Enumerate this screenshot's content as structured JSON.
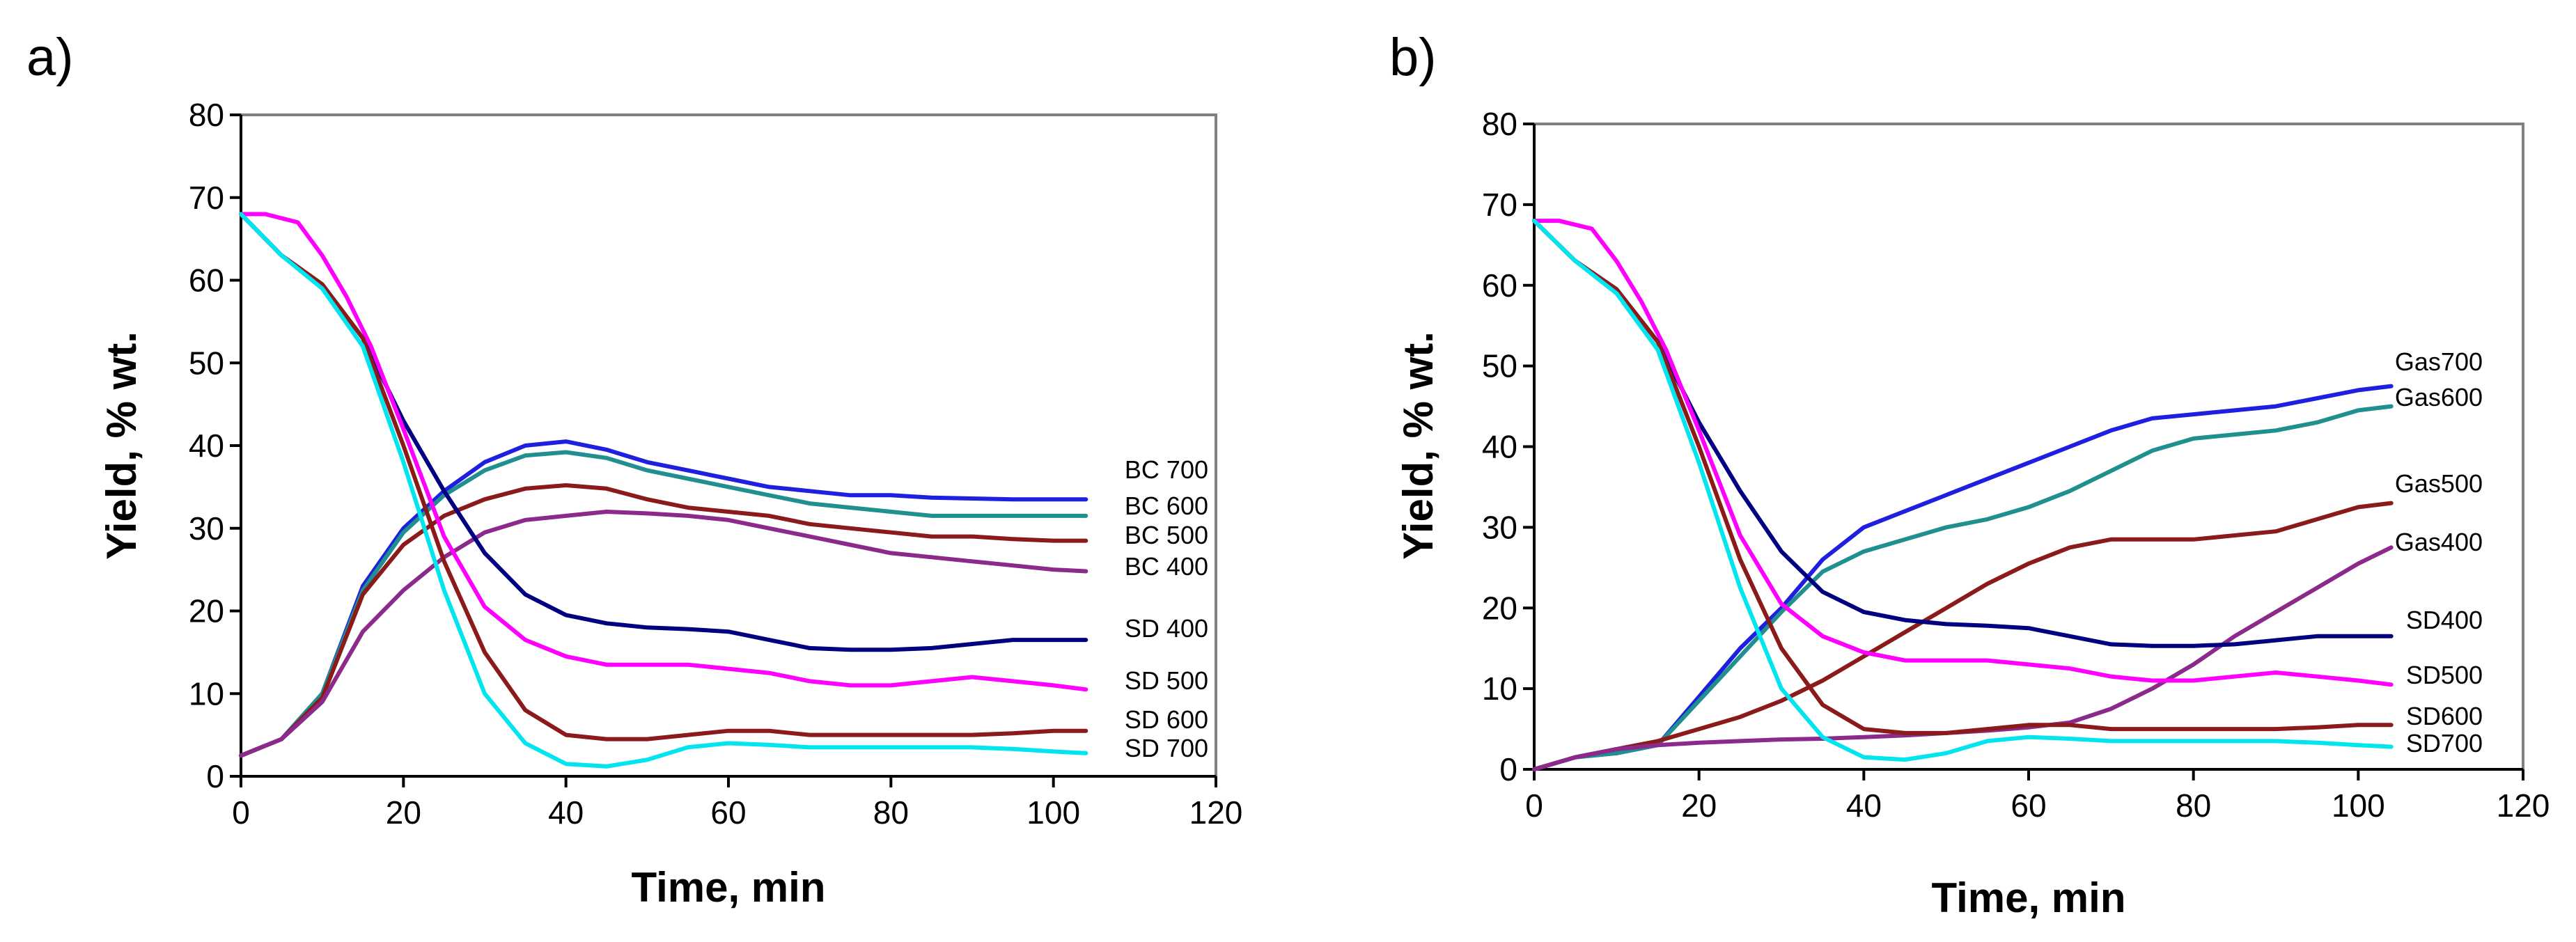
{
  "chart_data": [
    {
      "type": "line",
      "panel_label": "a)",
      "xlabel": "Time, min",
      "ylabel": "Yield, % wt.",
      "xlim": [
        0,
        120
      ],
      "ylim": [
        0,
        80
      ],
      "x_ticks": [
        "0",
        "20",
        "40",
        "60",
        "80",
        "100",
        "120"
      ],
      "y_ticks": [
        "0",
        "10",
        "20",
        "30",
        "40",
        "50",
        "60",
        "70",
        "80"
      ],
      "grid": false,
      "legend": "labels at line ends (right)",
      "series": [
        {
          "name": "BC 700",
          "color": "#1f1fe0",
          "x": [
            0,
            5,
            10,
            15,
            20,
            25,
            30,
            35,
            40,
            45,
            50,
            55,
            60,
            65,
            70,
            75,
            80,
            85,
            90,
            95,
            100,
            104
          ],
          "y": [
            2.5,
            4.5,
            10,
            23,
            30,
            34.5,
            38,
            40,
            40.5,
            39.5,
            38,
            37,
            36,
            35,
            34.5,
            34,
            34,
            33.7,
            33.6,
            33.5,
            33.5,
            33.5
          ]
        },
        {
          "name": "BC 600",
          "color": "#1f8f8f",
          "x": [
            0,
            5,
            10,
            15,
            20,
            25,
            30,
            35,
            40,
            45,
            50,
            55,
            60,
            65,
            70,
            75,
            80,
            85,
            90,
            95,
            100,
            104
          ],
          "y": [
            2.5,
            4.5,
            10,
            22.5,
            29.5,
            34,
            37,
            38.8,
            39.2,
            38.5,
            37,
            36,
            35,
            34,
            33,
            32.5,
            32,
            31.5,
            31.5,
            31.5,
            31.5,
            31.5
          ]
        },
        {
          "name": "BC 500",
          "color": "#8b1a1a",
          "x": [
            0,
            5,
            10,
            15,
            20,
            25,
            30,
            35,
            40,
            45,
            50,
            55,
            60,
            65,
            70,
            75,
            80,
            85,
            90,
            95,
            100,
            104
          ],
          "y": [
            2.5,
            4.5,
            9.5,
            22,
            28,
            31.5,
            33.5,
            34.8,
            35.2,
            34.8,
            33.5,
            32.5,
            32,
            31.5,
            30.5,
            30,
            29.5,
            29,
            29,
            28.7,
            28.5,
            28.5
          ]
        },
        {
          "name": "BC 400",
          "color": "#8b2a8b",
          "x": [
            0,
            5,
            10,
            15,
            20,
            25,
            30,
            35,
            40,
            45,
            50,
            55,
            60,
            65,
            70,
            75,
            80,
            85,
            90,
            95,
            100,
            104
          ],
          "y": [
            2.5,
            4.5,
            9,
            17.5,
            22.5,
            26.5,
            29.5,
            31,
            31.5,
            32,
            31.8,
            31.5,
            31,
            30,
            29,
            28,
            27,
            26.5,
            26,
            25.5,
            25,
            24.8
          ]
        },
        {
          "name": "SD 400",
          "color": "#000080",
          "x": [
            0,
            5,
            10,
            15,
            20,
            25,
            30,
            35,
            40,
            45,
            50,
            55,
            60,
            65,
            70,
            75,
            80,
            85,
            90,
            95,
            100,
            104
          ],
          "y": [
            68,
            63,
            59.5,
            53,
            43,
            34.5,
            27,
            22,
            19.5,
            18.5,
            18,
            17.8,
            17.5,
            16.5,
            15.5,
            15.3,
            15.3,
            15.5,
            16,
            16.5,
            16.5,
            16.5
          ]
        },
        {
          "name": "SD 500",
          "color": "#ff00ff",
          "x": [
            0,
            3,
            7,
            10,
            13,
            16,
            20,
            25,
            30,
            35,
            40,
            45,
            50,
            55,
            60,
            65,
            70,
            75,
            80,
            85,
            90,
            95,
            100,
            104
          ],
          "y": [
            68,
            68,
            67,
            63,
            58,
            52,
            42,
            29,
            20.5,
            16.5,
            14.5,
            13.5,
            13.5,
            13.5,
            13,
            12.5,
            11.5,
            11,
            11,
            11.5,
            12,
            11.5,
            11,
            10.5
          ]
        },
        {
          "name": "SD 600",
          "color": "#8b1a1a",
          "x": [
            0,
            5,
            10,
            15,
            20,
            25,
            30,
            35,
            40,
            45,
            50,
            55,
            60,
            65,
            70,
            75,
            80,
            85,
            90,
            95,
            100,
            104
          ],
          "y": [
            68,
            63,
            59.5,
            53,
            40,
            26,
            15,
            8,
            5,
            4.5,
            4.5,
            5,
            5.5,
            5.5,
            5,
            5,
            5,
            5,
            5,
            5.2,
            5.5,
            5.5
          ]
        },
        {
          "name": "SD 700",
          "color": "#00e5ee",
          "x": [
            0,
            5,
            10,
            15,
            20,
            25,
            30,
            35,
            40,
            45,
            50,
            55,
            60,
            65,
            70,
            75,
            80,
            85,
            90,
            95,
            100,
            104
          ],
          "y": [
            68,
            63,
            59,
            52,
            38,
            22.5,
            10,
            4,
            1.5,
            1.2,
            2,
            3.5,
            4,
            3.8,
            3.5,
            3.5,
            3.5,
            3.5,
            3.5,
            3.3,
            3,
            2.8
          ]
        }
      ]
    },
    {
      "type": "line",
      "panel_label": "b)",
      "xlabel": "Time, min",
      "ylabel": "Yield, % wt.",
      "xlim": [
        0,
        120
      ],
      "ylim": [
        0,
        80
      ],
      "x_ticks": [
        "0",
        "20",
        "40",
        "60",
        "80",
        "100",
        "120"
      ],
      "y_ticks": [
        "0",
        "10",
        "20",
        "30",
        "40",
        "50",
        "60",
        "70",
        "80"
      ],
      "grid": false,
      "legend": "labels at line ends (right)",
      "series": [
        {
          "name": "Gas700",
          "color": "#1f1fe0",
          "x": [
            0,
            5,
            10,
            15,
            20,
            25,
            30,
            35,
            40,
            45,
            50,
            55,
            60,
            65,
            70,
            75,
            80,
            85,
            90,
            95,
            100,
            104
          ],
          "y": [
            0,
            1.5,
            2,
            3,
            9,
            15,
            20,
            26,
            30,
            32,
            34,
            36,
            38,
            40,
            42,
            43.5,
            44,
            44.5,
            45,
            46,
            47,
            47.5
          ]
        },
        {
          "name": "Gas600",
          "color": "#1f8f8f",
          "x": [
            0,
            5,
            10,
            15,
            20,
            25,
            30,
            35,
            40,
            45,
            50,
            55,
            60,
            65,
            70,
            75,
            80,
            85,
            90,
            95,
            100,
            104
          ],
          "y": [
            0,
            1.5,
            2,
            3,
            8.5,
            14,
            19.5,
            24.5,
            27,
            28.5,
            30,
            31,
            32.5,
            34.5,
            37,
            39.5,
            41,
            41.5,
            42,
            43,
            44.5,
            45
          ]
        },
        {
          "name": "Gas500",
          "color": "#8b1a1a",
          "x": [
            0,
            5,
            10,
            15,
            20,
            25,
            30,
            35,
            40,
            45,
            50,
            55,
            60,
            65,
            70,
            75,
            80,
            85,
            90,
            95,
            100,
            104
          ],
          "y": [
            0,
            1.5,
            2.5,
            3.5,
            5,
            6.5,
            8.5,
            11,
            14,
            17,
            20,
            23,
            25.5,
            27.5,
            28.5,
            28.5,
            28.5,
            29,
            29.5,
            31,
            32.5,
            33
          ]
        },
        {
          "name": "Gas400",
          "color": "#8b2a8b",
          "x": [
            0,
            5,
            10,
            15,
            20,
            25,
            30,
            35,
            40,
            45,
            50,
            55,
            60,
            65,
            70,
            75,
            80,
            85,
            90,
            95,
            100,
            104
          ],
          "y": [
            0,
            1.5,
            2.5,
            3,
            3.3,
            3.5,
            3.7,
            3.8,
            4,
            4.2,
            4.5,
            4.8,
            5.2,
            5.8,
            7.5,
            10,
            13,
            16.5,
            19.5,
            22.5,
            25.5,
            27.5
          ]
        },
        {
          "name": "SD400",
          "color": "#000080",
          "x": [
            0,
            5,
            10,
            15,
            20,
            25,
            30,
            35,
            40,
            45,
            50,
            55,
            60,
            65,
            70,
            75,
            80,
            85,
            90,
            95,
            100,
            104
          ],
          "y": [
            68,
            63,
            59.5,
            53,
            43,
            34.5,
            27,
            22,
            19.5,
            18.5,
            18,
            17.8,
            17.5,
            16.5,
            15.5,
            15.3,
            15.3,
            15.5,
            16,
            16.5,
            16.5,
            16.5
          ]
        },
        {
          "name": "SD500",
          "color": "#ff00ff",
          "x": [
            0,
            3,
            7,
            10,
            13,
            16,
            20,
            25,
            30,
            35,
            40,
            45,
            50,
            55,
            60,
            65,
            70,
            75,
            80,
            85,
            90,
            95,
            100,
            104
          ],
          "y": [
            68,
            68,
            67,
            63,
            58,
            52,
            42,
            29,
            20.5,
            16.5,
            14.5,
            13.5,
            13.5,
            13.5,
            13,
            12.5,
            11.5,
            11,
            11,
            11.5,
            12,
            11.5,
            11,
            10.5
          ]
        },
        {
          "name": "SD600",
          "color": "#8b1a1a",
          "x": [
            0,
            5,
            10,
            15,
            20,
            25,
            30,
            35,
            40,
            45,
            50,
            55,
            60,
            65,
            70,
            75,
            80,
            85,
            90,
            95,
            100,
            104
          ],
          "y": [
            68,
            63,
            59.5,
            53,
            40,
            26,
            15,
            8,
            5,
            4.5,
            4.5,
            5,
            5.5,
            5.5,
            5,
            5,
            5,
            5,
            5,
            5.2,
            5.5,
            5.5
          ]
        },
        {
          "name": "SD700",
          "color": "#00e5ee",
          "x": [
            0,
            5,
            10,
            15,
            20,
            25,
            30,
            35,
            40,
            45,
            50,
            55,
            60,
            65,
            70,
            75,
            80,
            85,
            90,
            95,
            100,
            104
          ],
          "y": [
            68,
            63,
            59,
            52,
            38,
            22.5,
            10,
            4,
            1.5,
            1.2,
            2,
            3.5,
            4,
            3.8,
            3.5,
            3.5,
            3.5,
            3.5,
            3.5,
            3.3,
            3,
            2.8
          ]
        }
      ]
    }
  ]
}
